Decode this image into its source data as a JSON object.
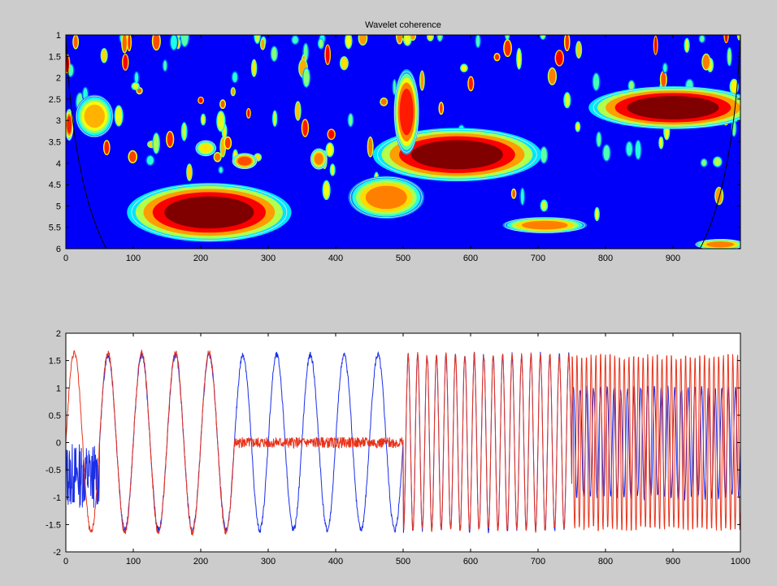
{
  "figure": {
    "background": "#cccccc"
  },
  "chart_data": [
    {
      "type": "heatmap",
      "title": "Wavelet coherence",
      "xlabel": "",
      "ylabel": "",
      "xlim": [
        0,
        1000
      ],
      "ylim": [
        6,
        1
      ],
      "y_reversed": true,
      "xticks": [
        0,
        100,
        200,
        300,
        400,
        500,
        600,
        700,
        800,
        900
      ],
      "yticks": [
        1,
        1.5,
        2,
        2.5,
        3,
        3.5,
        4,
        4.5,
        5,
        5.5,
        6
      ],
      "colormap": "jet",
      "value_range": [
        0,
        1
      ],
      "background_value": 0.12,
      "regions": [
        {
          "x": [
            115,
            310
          ],
          "y": [
            4.6,
            5.7
          ],
          "peak": 1.0
        },
        {
          "x": [
            480,
            680
          ],
          "y": [
            3.3,
            4.3
          ],
          "peak": 1.0
        },
        {
          "x": [
            490,
            520
          ],
          "y": [
            2.0,
            3.6
          ],
          "peak": 0.85
        },
        {
          "x": [
            430,
            520
          ],
          "y": [
            4.4,
            5.2
          ],
          "peak": 0.75
        },
        {
          "x": [
            800,
            1000
          ],
          "y": [
            2.3,
            3.1
          ],
          "peak": 1.0
        },
        {
          "x": [
            660,
            760
          ],
          "y": [
            5.3,
            5.6
          ],
          "peak": 0.75
        },
        {
          "x": [
            940,
            1000
          ],
          "y": [
            5.8,
            6.0
          ],
          "peak": 0.75
        },
        {
          "x": [
            20,
            65
          ],
          "y": [
            2.5,
            3.3
          ],
          "peak": 0.7
        },
        {
          "x": [
            0,
            10
          ],
          "y": [
            2.8,
            3.4
          ],
          "peak": 0.85
        },
        {
          "x": [
            250,
            280
          ],
          "y": [
            3.8,
            4.1
          ],
          "peak": 0.8
        },
        {
          "x": [
            195,
            220
          ],
          "y": [
            3.5,
            3.8
          ],
          "peak": 0.65
        },
        {
          "x": [
            365,
            385
          ],
          "y": [
            3.7,
            4.1
          ],
          "peak": 0.75
        }
      ],
      "cone_of_influence": true,
      "significance_contours": true
    },
    {
      "type": "line",
      "title": "",
      "xlabel": "",
      "ylabel": "",
      "xlim": [
        0,
        1000
      ],
      "ylim": [
        -2,
        2
      ],
      "xticks": [
        0,
        100,
        200,
        300,
        400,
        500,
        600,
        700,
        800,
        900,
        1000
      ],
      "yticks": [
        -2,
        -1.5,
        -1,
        -0.5,
        0,
        0.5,
        1,
        1.5,
        2
      ],
      "series": [
        {
          "color": "#1a2ee8",
          "segments": [
            {
              "x": [
                0,
                50
              ],
              "form": "noise",
              "amplitude": 0.6,
              "offset": -0.6
            },
            {
              "x": [
                50,
                500
              ],
              "form": "sine",
              "amplitude": 1.6,
              "period": 50
            },
            {
              "x": [
                500,
                750
              ],
              "form": "sine",
              "amplitude": 1.6,
              "period": 14
            },
            {
              "x": [
                750,
                1000
              ],
              "form": "sine",
              "amplitude": 1.0,
              "period": 10
            }
          ]
        },
        {
          "color": "#e8321a",
          "segments": [
            {
              "x": [
                0,
                250
              ],
              "form": "sine",
              "amplitude": 1.65,
              "period": 50
            },
            {
              "x": [
                250,
                500
              ],
              "form": "noise",
              "amplitude": 0.1,
              "offset": 0
            },
            {
              "x": [
                500,
                750
              ],
              "form": "sine",
              "amplitude": 1.6,
              "period": 14
            },
            {
              "x": [
                750,
                1000
              ],
              "form": "sine",
              "amplitude": 1.6,
              "period": 7
            }
          ]
        }
      ]
    }
  ]
}
